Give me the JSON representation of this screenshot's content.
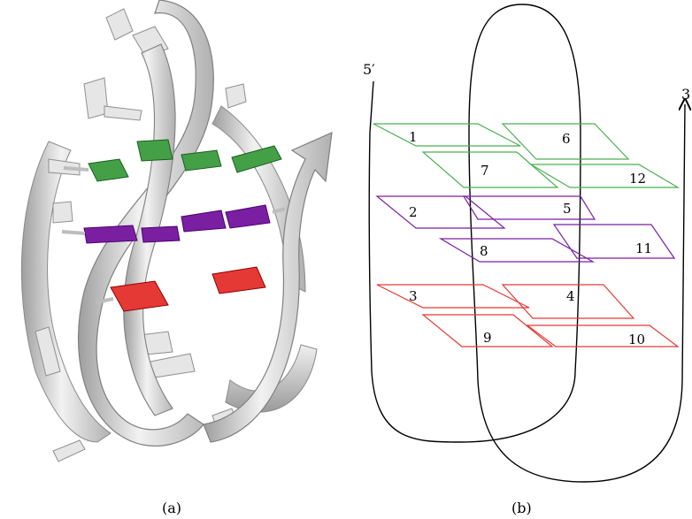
{
  "figure": {
    "panel_a_caption": "(a)",
    "panel_b_caption": "(b)",
    "strand_end_5": "5′",
    "strand_end_3": "3"
  },
  "colors": {
    "tetrad_layer_1": "#4caf50",
    "tetrad_layer_2": "#7b1fa2",
    "tetrad_layer_3": "#e53935",
    "backbone": "#000000",
    "ribbon": "#d9d9d9",
    "ribbon_shade": "#a9a9a9"
  },
  "tetrads": [
    {
      "layer": 1,
      "labels": [
        "1",
        "6",
        "7",
        "12"
      ]
    },
    {
      "layer": 2,
      "labels": [
        "2",
        "5",
        "8",
        "11"
      ]
    },
    {
      "layer": 3,
      "labels": [
        "3",
        "4",
        "9",
        "10"
      ]
    }
  ]
}
